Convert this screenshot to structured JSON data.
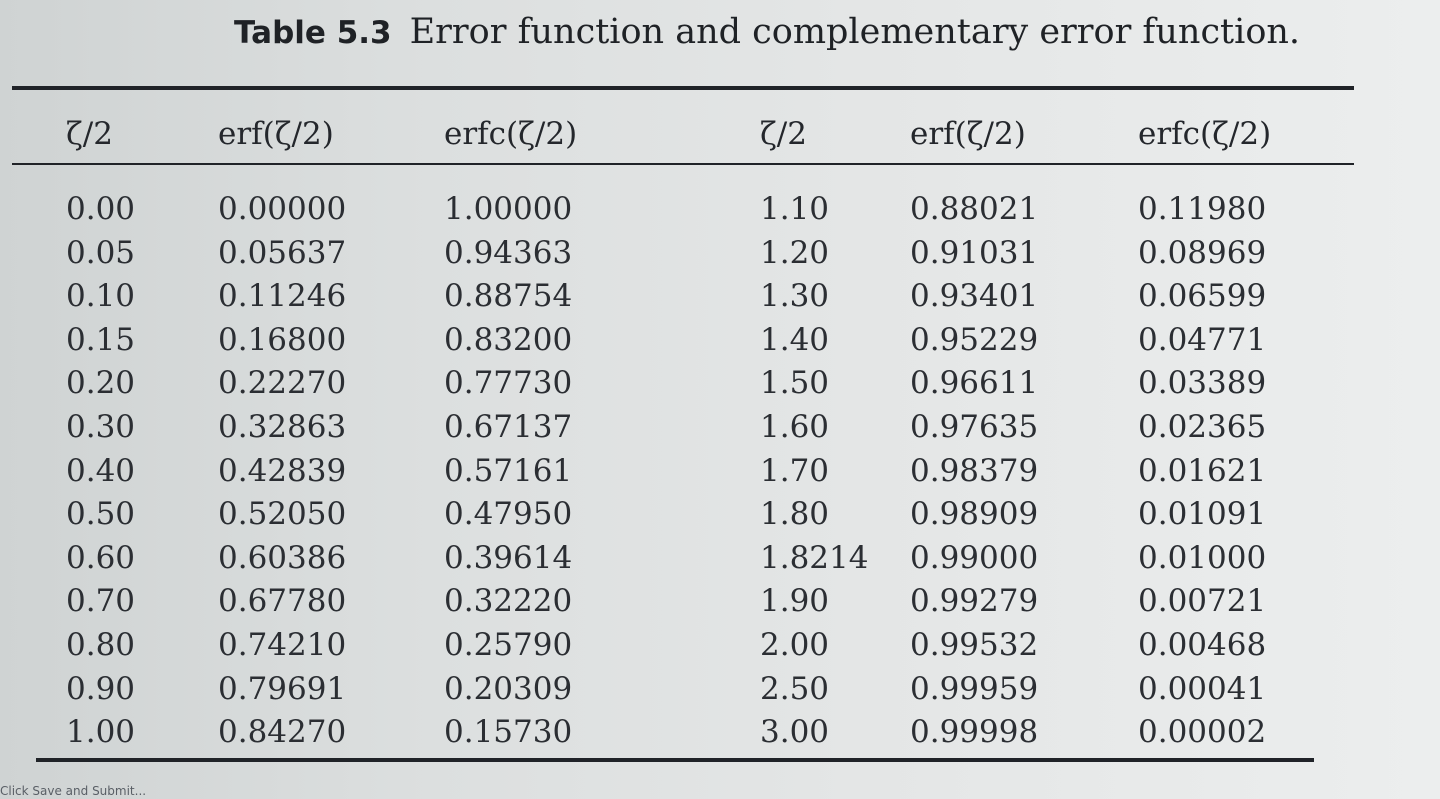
{
  "caption": {
    "label": "Table 5.3",
    "text": "Error function and complementary error function."
  },
  "headers": [
    "ζ/2",
    "erf(ζ/2)",
    "erfc(ζ/2)",
    "ζ/2",
    "erf(ζ/2)",
    "erfc(ζ/2)"
  ],
  "left_rows": [
    [
      "0.00",
      "0.00000",
      "1.00000"
    ],
    [
      "0.05",
      "0.05637",
      "0.94363"
    ],
    [
      "0.10",
      "0.11246",
      "0.88754"
    ],
    [
      "0.15",
      "0.16800",
      "0.83200"
    ],
    [
      "0.20",
      "0.22270",
      "0.77730"
    ],
    [
      "0.30",
      "0.32863",
      "0.67137"
    ],
    [
      "0.40",
      "0.42839",
      "0.57161"
    ],
    [
      "0.50",
      "0.52050",
      "0.47950"
    ],
    [
      "0.60",
      "0.60386",
      "0.39614"
    ],
    [
      "0.70",
      "0.67780",
      "0.32220"
    ],
    [
      "0.80",
      "0.74210",
      "0.25790"
    ],
    [
      "0.90",
      "0.79691",
      "0.20309"
    ],
    [
      "1.00",
      "0.84270",
      "0.15730"
    ]
  ],
  "right_rows": [
    [
      "1.10",
      "0.88021",
      "0.11980"
    ],
    [
      "1.20",
      "0.91031",
      "0.08969"
    ],
    [
      "1.30",
      "0.93401",
      "0.06599"
    ],
    [
      "1.40",
      "0.95229",
      "0.04771"
    ],
    [
      "1.50",
      "0.96611",
      "0.03389"
    ],
    [
      "1.60",
      "0.97635",
      "0.02365"
    ],
    [
      "1.70",
      "0.98379",
      "0.01621"
    ],
    [
      "1.80",
      "0.98909",
      "0.01091"
    ],
    [
      "1.8214",
      "0.99000",
      "0.01000"
    ],
    [
      "1.90",
      "0.99279",
      "0.00721"
    ],
    [
      "2.00",
      "0.99532",
      "0.00468"
    ],
    [
      "2.50",
      "0.99959",
      "0.00041"
    ],
    [
      "3.00",
      "0.99998",
      "0.00002"
    ]
  ],
  "footer_fragment": "Click Save and Submit..."
}
